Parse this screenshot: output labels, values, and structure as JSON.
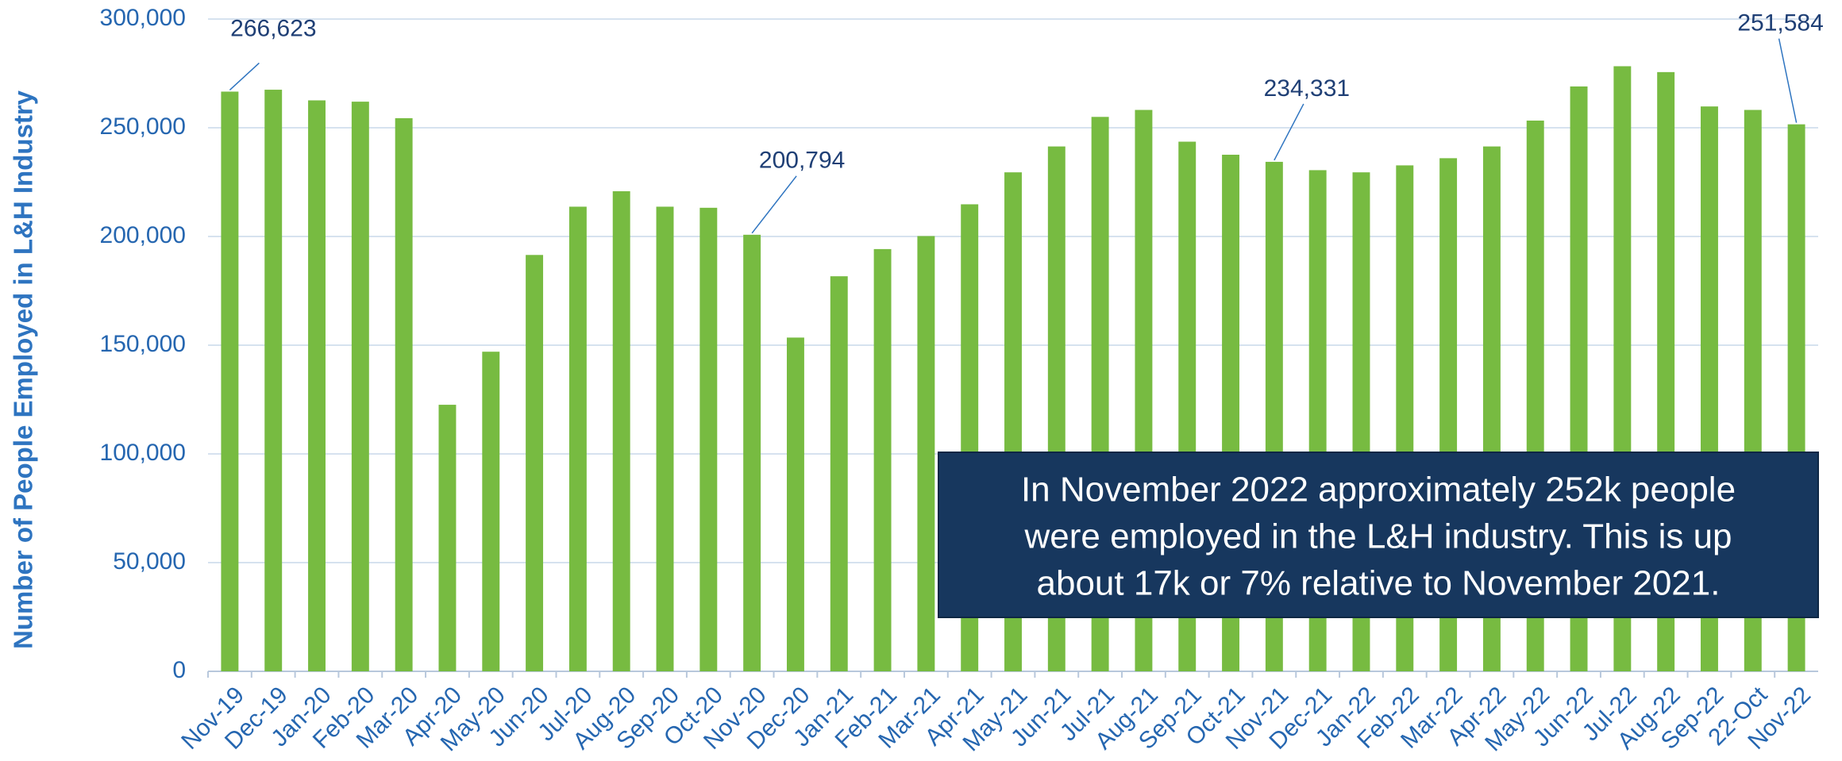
{
  "chart_data": {
    "type": "bar",
    "y_label": "Number of People Employed in L&H Industry",
    "categories": [
      "Nov-19",
      "Dec-19",
      "Jan-20",
      "Feb-20",
      "Mar-20",
      "Apr-20",
      "May-20",
      "Jun-20",
      "Jul-20",
      "Aug-20",
      "Sep-20",
      "Oct-20",
      "Nov-20",
      "Dec-20",
      "Jan-21",
      "Feb-21",
      "Mar-21",
      "Apr-21",
      "May-21",
      "Jun-21",
      "Jul-21",
      "Aug-21",
      "Sep-21",
      "Oct-21",
      "Nov-21",
      "Dec-21",
      "Jan-22",
      "Feb-22",
      "Mar-22",
      "Apr-22",
      "May-22",
      "Jun-22",
      "Jul-22",
      "Aug-22",
      "Sep-22",
      "22-Oct",
      "Nov-22"
    ],
    "values": [
      266623,
      267500,
      262600,
      262000,
      254400,
      122600,
      147000,
      191500,
      213700,
      220800,
      213700,
      213200,
      200794,
      153500,
      181700,
      194200,
      200200,
      214800,
      229500,
      241400,
      255000,
      258200,
      243600,
      237600,
      234331,
      230500,
      229500,
      232700,
      236000,
      241400,
      253300,
      269000,
      278300,
      275600,
      259800,
      258200,
      251584
    ],
    "value_labels": [
      "266,623",
      null,
      null,
      null,
      null,
      null,
      null,
      null,
      null,
      null,
      null,
      null,
      "200,794",
      null,
      null,
      null,
      null,
      null,
      null,
      null,
      null,
      null,
      null,
      null,
      "234,331",
      null,
      null,
      null,
      null,
      null,
      null,
      null,
      null,
      null,
      null,
      null,
      "251,584"
    ],
    "color": "#77bb41",
    "ylim": [
      0,
      300000
    ],
    "yticks": [
      0,
      {
        "value": 50000,
        "label": "50,000"
      },
      {
        "value": 100000,
        "label": "100,000"
      },
      {
        "value": 150000,
        "label": "150,000"
      },
      {
        "value": 200000,
        "label": "200,000"
      },
      {
        "value": 250000,
        "label": "250,000"
      },
      {
        "value": 300000,
        "label": "300,000"
      }
    ],
    "grid": true,
    "annotation": [
      "In November 2022 approximately 252k people",
      "were employed in the L&H industry. This is up",
      "about 17k or 7% relative to November 2021."
    ]
  }
}
